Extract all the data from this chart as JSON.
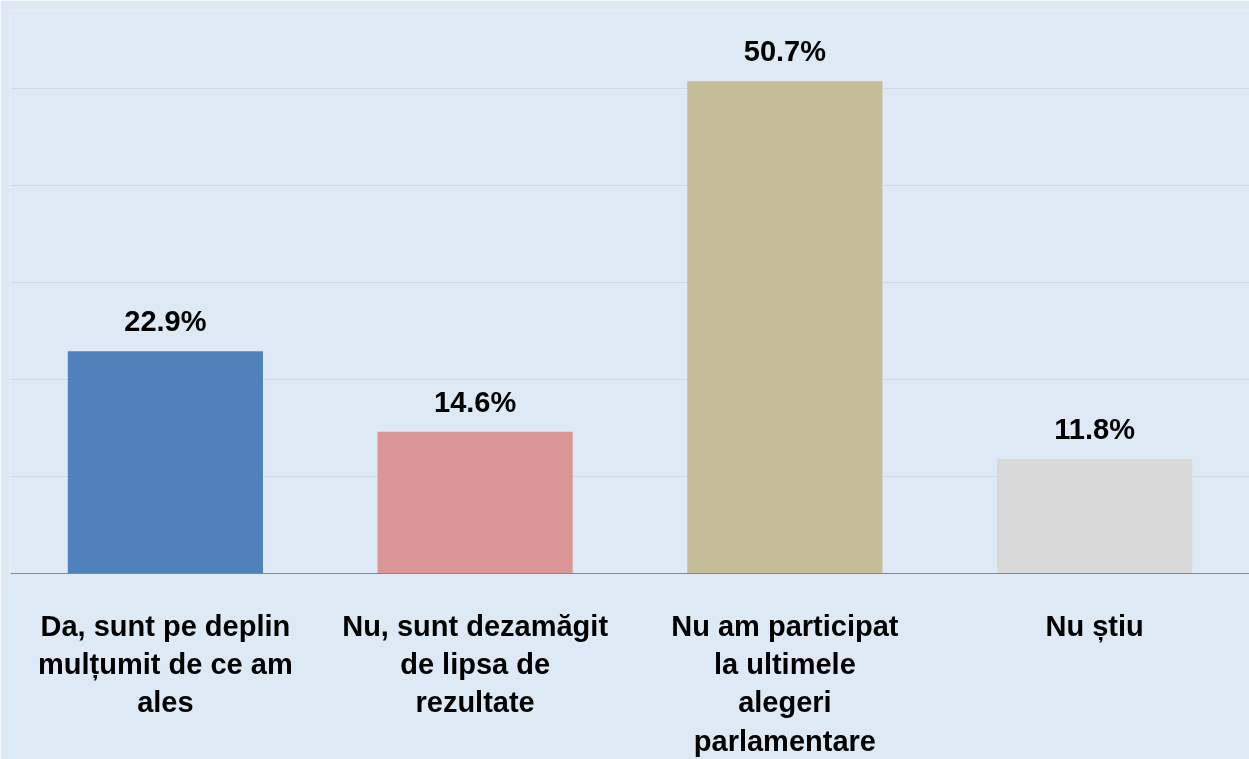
{
  "chart_data": {
    "type": "bar",
    "categories": [
      "Da, sunt pe deplin mulțumit de ce am ales",
      "Nu, sunt dezamăgit de lipsa de rezultate",
      "Nu am participat la ultimele alegeri parlamentare",
      "Nu știu"
    ],
    "values": [
      22.9,
      14.6,
      50.7,
      11.8
    ],
    "colors": [
      "#4f81bd",
      "#d99694",
      "#c4bd97",
      "#d9d9d9"
    ],
    "value_labels": [
      "22.9%",
      "14.6%",
      "50.7%",
      "11.8%"
    ],
    "ylim": [
      0,
      58
    ],
    "yticks": [
      {
        "value": 0,
        "label": null
      },
      {
        "value": 10,
        "label": null
      },
      {
        "value": 20,
        "label": null
      },
      {
        "value": 30,
        "label": null
      },
      {
        "value": 40,
        "label": null
      },
      {
        "value": 50,
        "label": null
      }
    ],
    "grid": "y",
    "tick_labels": "x"
  }
}
